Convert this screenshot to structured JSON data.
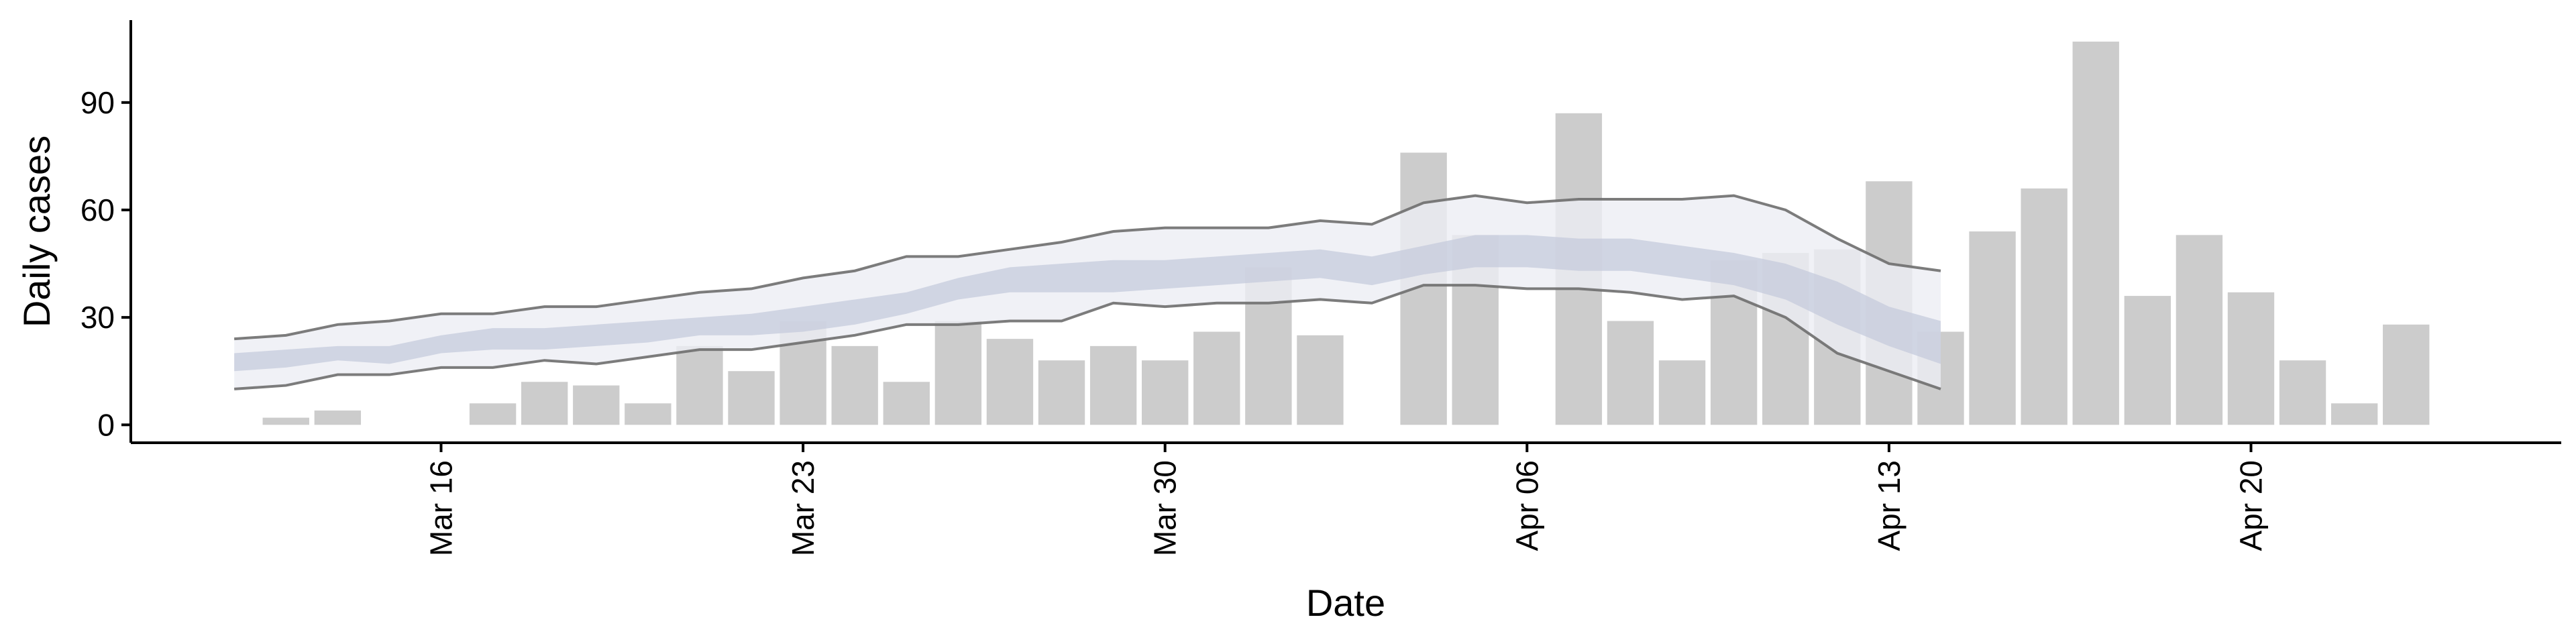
{
  "chart_data": {
    "type": "bar",
    "xlabel": "Date",
    "ylabel": "Daily cases",
    "x_ticks": [
      {
        "date": "2020-03-16",
        "label": "Mar 16"
      },
      {
        "date": "2020-03-23",
        "label": "Mar 23"
      },
      {
        "date": "2020-03-30",
        "label": "Mar 30"
      },
      {
        "date": "2020-04-06",
        "label": "Apr 06"
      },
      {
        "date": "2020-04-13",
        "label": "Apr 13"
      },
      {
        "date": "2020-04-20",
        "label": "Apr 20"
      }
    ],
    "y_ticks": [
      0,
      30,
      60,
      90
    ],
    "ylim": [
      -5,
      113
    ],
    "xlim": [
      "2020-03-10",
      "2020-04-26"
    ],
    "grid": false,
    "colors": {
      "bars": "#cccccc",
      "ci_outer": "#eceef4",
      "ci_inner": "#c5cbdc",
      "bound_lines": "#6e6e6e",
      "axis": "#000000"
    },
    "bars": [
      {
        "date": "2020-03-13",
        "value": 2
      },
      {
        "date": "2020-03-14",
        "value": 4
      },
      {
        "date": "2020-03-17",
        "value": 6
      },
      {
        "date": "2020-03-18",
        "value": 12
      },
      {
        "date": "2020-03-19",
        "value": 11
      },
      {
        "date": "2020-03-20",
        "value": 6
      },
      {
        "date": "2020-03-21",
        "value": 22
      },
      {
        "date": "2020-03-22",
        "value": 15
      },
      {
        "date": "2020-03-23",
        "value": 29
      },
      {
        "date": "2020-03-24",
        "value": 22
      },
      {
        "date": "2020-03-25",
        "value": 12
      },
      {
        "date": "2020-03-26",
        "value": 29
      },
      {
        "date": "2020-03-27",
        "value": 24
      },
      {
        "date": "2020-03-28",
        "value": 18
      },
      {
        "date": "2020-03-29",
        "value": 22
      },
      {
        "date": "2020-03-30",
        "value": 18
      },
      {
        "date": "2020-03-31",
        "value": 26
      },
      {
        "date": "2020-04-01",
        "value": 44
      },
      {
        "date": "2020-04-02",
        "value": 25
      },
      {
        "date": "2020-04-04",
        "value": 76
      },
      {
        "date": "2020-04-05",
        "value": 53
      },
      {
        "date": "2020-04-07",
        "value": 87
      },
      {
        "date": "2020-04-08",
        "value": 29
      },
      {
        "date": "2020-04-09",
        "value": 18
      },
      {
        "date": "2020-04-10",
        "value": 46
      },
      {
        "date": "2020-04-11",
        "value": 48
      },
      {
        "date": "2020-04-12",
        "value": 49
      },
      {
        "date": "2020-04-13",
        "value": 68
      },
      {
        "date": "2020-04-14",
        "value": 26
      },
      {
        "date": "2020-04-15",
        "value": 54
      },
      {
        "date": "2020-04-16",
        "value": 66
      },
      {
        "date": "2020-04-17",
        "value": 107
      },
      {
        "date": "2020-04-18",
        "value": 36
      },
      {
        "date": "2020-04-19",
        "value": 53
      },
      {
        "date": "2020-04-20",
        "value": 37
      },
      {
        "date": "2020-04-21",
        "value": 18
      },
      {
        "date": "2020-04-22",
        "value": 6
      },
      {
        "date": "2020-04-23",
        "value": 28
      }
    ],
    "estimate_band": [
      {
        "date": "2020-03-12",
        "lower90": 10,
        "lower50": 15,
        "upper50": 20,
        "upper90": 24
      },
      {
        "date": "2020-03-13",
        "lower90": 11,
        "lower50": 16,
        "upper50": 21,
        "upper90": 25
      },
      {
        "date": "2020-03-14",
        "lower90": 14,
        "lower50": 18,
        "upper50": 22,
        "upper90": 28
      },
      {
        "date": "2020-03-15",
        "lower90": 14,
        "lower50": 17,
        "upper50": 22,
        "upper90": 29
      },
      {
        "date": "2020-03-16",
        "lower90": 16,
        "lower50": 20,
        "upper50": 25,
        "upper90": 31
      },
      {
        "date": "2020-03-17",
        "lower90": 16,
        "lower50": 21,
        "upper50": 27,
        "upper90": 31
      },
      {
        "date": "2020-03-18",
        "lower90": 18,
        "lower50": 21,
        "upper50": 27,
        "upper90": 33
      },
      {
        "date": "2020-03-19",
        "lower90": 17,
        "lower50": 22,
        "upper50": 28,
        "upper90": 33
      },
      {
        "date": "2020-03-20",
        "lower90": 19,
        "lower50": 23,
        "upper50": 29,
        "upper90": 35
      },
      {
        "date": "2020-03-21",
        "lower90": 21,
        "lower50": 25,
        "upper50": 30,
        "upper90": 37
      },
      {
        "date": "2020-03-22",
        "lower90": 21,
        "lower50": 25,
        "upper50": 31,
        "upper90": 38
      },
      {
        "date": "2020-03-23",
        "lower90": 23,
        "lower50": 26,
        "upper50": 33,
        "upper90": 41
      },
      {
        "date": "2020-03-24",
        "lower90": 25,
        "lower50": 28,
        "upper50": 35,
        "upper90": 43
      },
      {
        "date": "2020-03-25",
        "lower90": 28,
        "lower50": 31,
        "upper50": 37,
        "upper90": 47
      },
      {
        "date": "2020-03-26",
        "lower90": 28,
        "lower50": 35,
        "upper50": 41,
        "upper90": 47
      },
      {
        "date": "2020-03-27",
        "lower90": 29,
        "lower50": 37,
        "upper50": 44,
        "upper90": 49
      },
      {
        "date": "2020-03-28",
        "lower90": 29,
        "lower50": 37,
        "upper50": 45,
        "upper90": 51
      },
      {
        "date": "2020-03-29",
        "lower90": 34,
        "lower50": 37,
        "upper50": 46,
        "upper90": 54
      },
      {
        "date": "2020-03-30",
        "lower90": 33,
        "lower50": 38,
        "upper50": 46,
        "upper90": 55
      },
      {
        "date": "2020-03-31",
        "lower90": 34,
        "lower50": 39,
        "upper50": 47,
        "upper90": 55
      },
      {
        "date": "2020-04-01",
        "lower90": 34,
        "lower50": 40,
        "upper50": 48,
        "upper90": 55
      },
      {
        "date": "2020-04-02",
        "lower90": 35,
        "lower50": 41,
        "upper50": 49,
        "upper90": 57
      },
      {
        "date": "2020-04-03",
        "lower90": 34,
        "lower50": 39,
        "upper50": 47,
        "upper90": 56
      },
      {
        "date": "2020-04-04",
        "lower90": 39,
        "lower50": 42,
        "upper50": 50,
        "upper90": 62
      },
      {
        "date": "2020-04-05",
        "lower90": 39,
        "lower50": 44,
        "upper50": 53,
        "upper90": 64
      },
      {
        "date": "2020-04-06",
        "lower90": 38,
        "lower50": 44,
        "upper50": 53,
        "upper90": 62
      },
      {
        "date": "2020-04-07",
        "lower90": 38,
        "lower50": 43,
        "upper50": 52,
        "upper90": 63
      },
      {
        "date": "2020-04-08",
        "lower90": 37,
        "lower50": 43,
        "upper50": 52,
        "upper90": 63
      },
      {
        "date": "2020-04-09",
        "lower90": 35,
        "lower50": 41,
        "upper50": 50,
        "upper90": 63
      },
      {
        "date": "2020-04-10",
        "lower90": 36,
        "lower50": 39,
        "upper50": 48,
        "upper90": 64
      },
      {
        "date": "2020-04-11",
        "lower90": 30,
        "lower50": 35,
        "upper50": 45,
        "upper90": 60
      },
      {
        "date": "2020-04-12",
        "lower90": 20,
        "lower50": 28,
        "upper50": 40,
        "upper90": 52
      },
      {
        "date": "2020-04-13",
        "lower90": 15,
        "lower50": 22,
        "upper50": 33,
        "upper90": 45
      },
      {
        "date": "2020-04-14",
        "lower90": 10,
        "lower50": 17,
        "upper50": 29,
        "upper90": 43
      }
    ]
  }
}
